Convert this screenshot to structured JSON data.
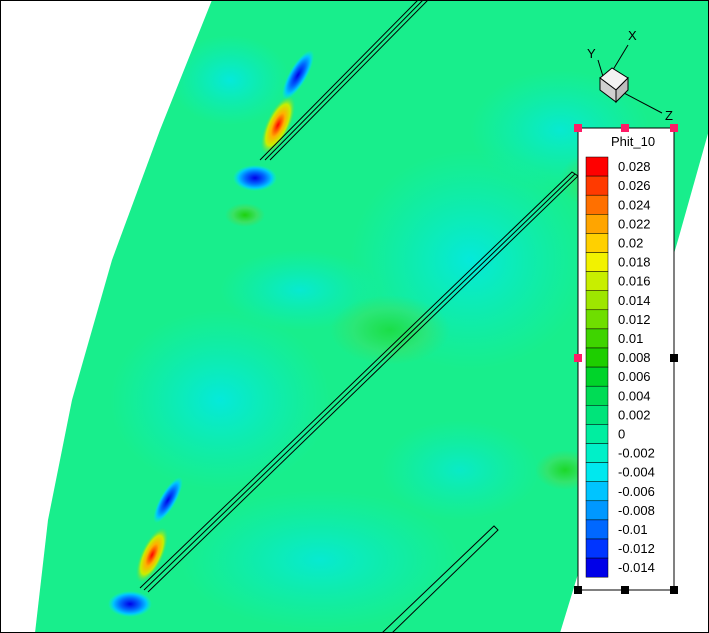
{
  "legend": {
    "title": "Phit_10",
    "levels": [
      {
        "label": "0.028",
        "color": "#ff0000"
      },
      {
        "label": "0.026",
        "color": "#ff3a00"
      },
      {
        "label": "0.024",
        "color": "#ff7000"
      },
      {
        "label": "0.022",
        "color": "#ffa500"
      },
      {
        "label": "0.02",
        "color": "#ffd000"
      },
      {
        "label": "0.018",
        "color": "#f2f200"
      },
      {
        "label": "0.016",
        "color": "#c8ee00"
      },
      {
        "label": "0.014",
        "color": "#9ee600"
      },
      {
        "label": "0.012",
        "color": "#6fde00"
      },
      {
        "label": "0.01",
        "color": "#3fd400"
      },
      {
        "label": "0.008",
        "color": "#1ece00"
      },
      {
        "label": "0.006",
        "color": "#00d42a"
      },
      {
        "label": "0.004",
        "color": "#00dc55"
      },
      {
        "label": "0.002",
        "color": "#00e47a"
      },
      {
        "label": "0",
        "color": "#00eea0"
      },
      {
        "label": "-0.002",
        "color": "#00f0c8"
      },
      {
        "label": "-0.004",
        "color": "#00e8ee"
      },
      {
        "label": "-0.006",
        "color": "#00c4ff"
      },
      {
        "label": "-0.008",
        "color": "#0098ff"
      },
      {
        "label": "-0.01",
        "color": "#0068ff"
      },
      {
        "label": "-0.012",
        "color": "#0035ff"
      },
      {
        "label": "-0.014",
        "color": "#0000e8"
      }
    ]
  },
  "axes_triad": {
    "x": "X",
    "y": "Y",
    "z": "Z"
  },
  "colors": {
    "field_base": "#18ee8c",
    "field_cyan": "#00ecd2",
    "field_green": "#3ee060",
    "blade_line": "#000000",
    "handle_pink": "#ff1a66"
  }
}
